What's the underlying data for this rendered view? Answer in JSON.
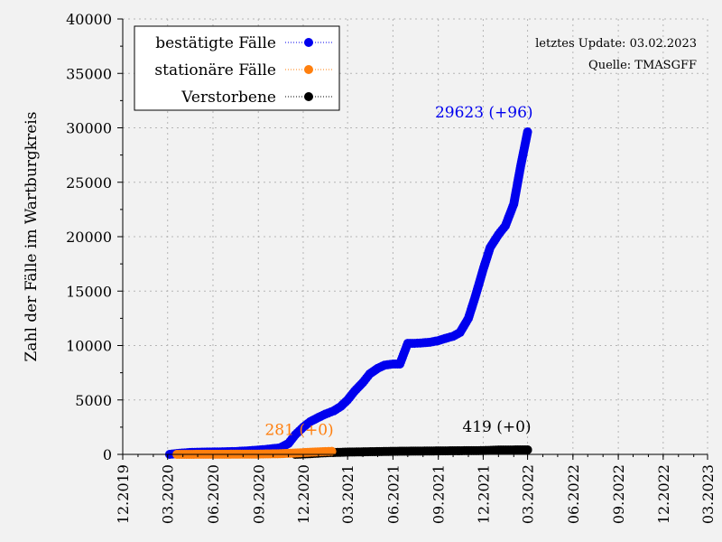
{
  "chart_data": {
    "type": "scatter",
    "ylabel": "Zahl der Fälle im Wartburgkreis",
    "ylim": [
      0,
      40000
    ],
    "yticks": [
      0,
      5000,
      10000,
      15000,
      20000,
      25000,
      30000,
      35000,
      40000
    ],
    "xlim": [
      "2019-12-01",
      "2023-03-01"
    ],
    "xticks": [
      {
        "date": "2019-12-01",
        "label": "12.2019"
      },
      {
        "date": "2020-03-01",
        "label": "03.2020"
      },
      {
        "date": "2020-06-01",
        "label": "06.2020"
      },
      {
        "date": "2020-09-01",
        "label": "09.2020"
      },
      {
        "date": "2020-12-01",
        "label": "12.2020"
      },
      {
        "date": "2021-03-01",
        "label": "03.2021"
      },
      {
        "date": "2021-06-01",
        "label": "06.2021"
      },
      {
        "date": "2021-09-01",
        "label": "09.2021"
      },
      {
        "date": "2021-12-01",
        "label": "12.2021"
      },
      {
        "date": "2022-03-01",
        "label": "03.2022"
      },
      {
        "date": "2022-06-01",
        "label": "06.2022"
      },
      {
        "date": "2022-09-01",
        "label": "09.2022"
      },
      {
        "date": "2022-12-01",
        "label": "12.2022"
      },
      {
        "date": "2023-03-01",
        "label": "03.2023"
      }
    ],
    "grid": true,
    "legend_position": "top-left",
    "notes": [
      "letztes Update: 03.02.2023",
      "Quelle: TMASGFF"
    ],
    "series": [
      {
        "name": "bestätigte Fälle",
        "color": "#0000ee",
        "annotation": "29623 (+96)",
        "points": [
          [
            "2020-03-05",
            0
          ],
          [
            "2020-03-20",
            80
          ],
          [
            "2020-04-15",
            180
          ],
          [
            "2020-05-15",
            210
          ],
          [
            "2020-06-15",
            230
          ],
          [
            "2020-07-15",
            260
          ],
          [
            "2020-08-15",
            340
          ],
          [
            "2020-09-15",
            450
          ],
          [
            "2020-10-15",
            600
          ],
          [
            "2020-11-01",
            1000
          ],
          [
            "2020-11-15",
            1800
          ],
          [
            "2020-12-01",
            2500
          ],
          [
            "2020-12-15",
            3000
          ],
          [
            "2021-01-01",
            3400
          ],
          [
            "2021-01-15",
            3700
          ],
          [
            "2021-02-01",
            4000
          ],
          [
            "2021-02-15",
            4400
          ],
          [
            "2021-03-01",
            5000
          ],
          [
            "2021-03-15",
            5800
          ],
          [
            "2021-04-01",
            6600
          ],
          [
            "2021-04-15",
            7400
          ],
          [
            "2021-05-01",
            7900
          ],
          [
            "2021-05-15",
            8200
          ],
          [
            "2021-06-01",
            8300
          ],
          [
            "2021-06-15",
            8300
          ],
          [
            "2021-07-01",
            10200
          ],
          [
            "2021-07-15",
            10200
          ],
          [
            "2021-08-01",
            10250
          ],
          [
            "2021-08-15",
            10300
          ],
          [
            "2021-09-01",
            10450
          ],
          [
            "2021-09-15",
            10650
          ],
          [
            "2021-10-01",
            10850
          ],
          [
            "2021-10-15",
            11200
          ],
          [
            "2021-11-01",
            12500
          ],
          [
            "2021-11-15",
            14500
          ],
          [
            "2021-12-01",
            17000
          ],
          [
            "2021-12-15",
            19000
          ],
          [
            "2022-01-01",
            20200
          ],
          [
            "2022-01-15",
            21000
          ],
          [
            "2022-02-01",
            23000
          ],
          [
            "2022-02-15",
            26500
          ],
          [
            "2022-03-01",
            29623
          ]
        ]
      },
      {
        "name": "stationäre Fälle",
        "color": "#ff7f0e",
        "annotation": "281 (+0)",
        "points": [
          [
            "2020-03-20",
            0
          ],
          [
            "2020-06-01",
            10
          ],
          [
            "2020-09-01",
            25
          ],
          [
            "2020-10-15",
            60
          ],
          [
            "2020-11-15",
            120
          ],
          [
            "2020-12-15",
            200
          ],
          [
            "2021-01-15",
            260
          ],
          [
            "2021-01-28",
            281
          ]
        ]
      },
      {
        "name": "Verstorbene",
        "color": "#000000",
        "annotation": "419 (+0)",
        "points": [
          [
            "2020-11-15",
            0
          ],
          [
            "2020-12-15",
            60
          ],
          [
            "2021-01-15",
            150
          ],
          [
            "2021-03-01",
            210
          ],
          [
            "2021-06-01",
            280
          ],
          [
            "2021-09-01",
            320
          ],
          [
            "2021-12-01",
            350
          ],
          [
            "2022-01-01",
            400
          ],
          [
            "2022-03-01",
            419
          ]
        ]
      }
    ]
  }
}
